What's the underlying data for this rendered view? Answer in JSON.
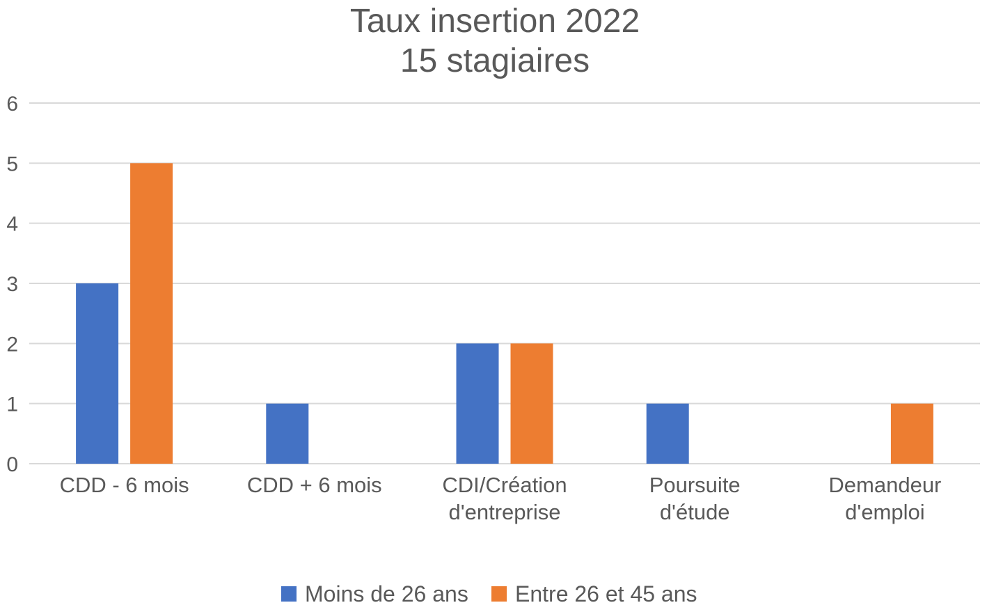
{
  "chart_data": {
    "type": "bar",
    "title": [
      "Taux insertion 2022",
      "15 stagiaires"
    ],
    "xlabel": "",
    "ylabel": "",
    "ylim": [
      0,
      6
    ],
    "yticks": [
      "0",
      "1",
      "2",
      "3",
      "4",
      "5",
      "6"
    ],
    "grid": true,
    "legend_position": "bottom",
    "categories": [
      [
        "CDD - 6 mois"
      ],
      [
        "CDD + 6 mois"
      ],
      [
        "CDI/Création",
        "d'entreprise"
      ],
      [
        "Poursuite",
        "d'étude"
      ],
      [
        "Demandeur",
        "d'emploi"
      ]
    ],
    "series": [
      {
        "name": "Moins de 26 ans",
        "color": "#4472C4",
        "values": [
          3,
          1,
          2,
          1,
          0
        ]
      },
      {
        "name": "Entre 26 et 45 ans",
        "color": "#ED7D31",
        "values": [
          5,
          0,
          2,
          0,
          1
        ]
      }
    ]
  }
}
